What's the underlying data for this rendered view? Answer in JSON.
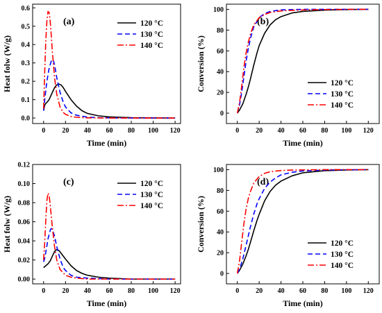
{
  "chart_data": [
    {
      "panel": "(a)",
      "type": "line",
      "xlabel": "Time (min)",
      "ylabel": "Heat folw (W/g)",
      "xlim": [
        -10,
        125
      ],
      "ylim": [
        -0.03,
        0.62
      ],
      "xticks": [
        0,
        20,
        40,
        60,
        80,
        100,
        120
      ],
      "yticks": [
        0.0,
        0.1,
        0.2,
        0.3,
        0.4,
        0.5,
        0.6
      ],
      "ytick_decimals": 1,
      "legend_position": "top-right",
      "series": [
        {
          "name": "120 °C",
          "color": "#000000",
          "dash": "solid",
          "x": [
            0,
            1,
            2,
            3,
            5,
            8,
            10,
            12,
            14,
            16,
            18,
            20,
            25,
            30,
            35,
            40,
            50,
            60,
            80,
            100,
            120
          ],
          "y": [
            0.04,
            0.07,
            0.08,
            0.085,
            0.1,
            0.14,
            0.165,
            0.18,
            0.185,
            0.18,
            0.165,
            0.145,
            0.1,
            0.065,
            0.04,
            0.025,
            0.012,
            0.006,
            0.002,
            0.001,
            0.0
          ]
        },
        {
          "name": "130 °C",
          "color": "#0000ff",
          "dash": "dashed",
          "x": [
            0,
            1,
            2,
            3,
            5,
            7,
            8,
            9,
            10,
            12,
            15,
            18,
            20,
            25,
            30,
            40,
            50,
            60,
            80,
            100,
            120
          ],
          "y": [
            0.04,
            0.1,
            0.15,
            0.2,
            0.27,
            0.31,
            0.32,
            0.31,
            0.29,
            0.22,
            0.14,
            0.085,
            0.06,
            0.028,
            0.015,
            0.005,
            0.002,
            0.001,
            0.0,
            0.0,
            0.0
          ]
        },
        {
          "name": "140 °C",
          "color": "#ff0000",
          "dash": "dashdot",
          "x": [
            0,
            1,
            2,
            3,
            4,
            5,
            6,
            7,
            8,
            10,
            12,
            15,
            18,
            20,
            25,
            30,
            40,
            60,
            80,
            100,
            120
          ],
          "y": [
            0.05,
            0.25,
            0.42,
            0.53,
            0.58,
            0.575,
            0.53,
            0.45,
            0.36,
            0.22,
            0.13,
            0.06,
            0.03,
            0.02,
            0.008,
            0.004,
            0.001,
            0.0,
            0.0,
            0.0,
            0.0
          ]
        }
      ]
    },
    {
      "panel": "(b)",
      "type": "line",
      "xlabel": "Time (min)",
      "ylabel": "Conversion (%)",
      "xlim": [
        -10,
        130
      ],
      "ylim": [
        -10,
        105
      ],
      "xticks": [
        0,
        20,
        40,
        60,
        80,
        100,
        120
      ],
      "yticks": [
        0,
        20,
        40,
        60,
        80,
        100
      ],
      "ytick_decimals": 0,
      "legend_position": "center-right",
      "series": [
        {
          "name": "120 °C",
          "color": "#000000",
          "dash": "solid",
          "x": [
            0,
            2,
            5,
            8,
            10,
            12,
            15,
            18,
            20,
            25,
            30,
            35,
            40,
            50,
            60,
            80,
            100,
            120
          ],
          "y": [
            0,
            3,
            9,
            18,
            25,
            33,
            46,
            58,
            65,
            77,
            85,
            90,
            93,
            96.5,
            98,
            99.3,
            99.8,
            100
          ]
        },
        {
          "name": "130 °C",
          "color": "#0000ff",
          "dash": "dashed",
          "x": [
            0,
            2,
            4,
            6,
            8,
            10,
            12,
            15,
            20,
            25,
            30,
            40,
            50,
            60,
            80,
            100,
            120
          ],
          "y": [
            0,
            8,
            20,
            35,
            50,
            62,
            72,
            83,
            92,
            96,
            98,
            99.5,
            99.8,
            100,
            100,
            100,
            100
          ]
        },
        {
          "name": "140 °C",
          "color": "#ff0000",
          "dash": "dashdot",
          "x": [
            0,
            2,
            4,
            6,
            8,
            10,
            12,
            15,
            20,
            25,
            30,
            40,
            50,
            60,
            80,
            100,
            120
          ],
          "y": [
            0,
            10,
            26,
            44,
            58,
            68,
            76,
            85,
            92,
            95,
            97,
            98.5,
            99,
            99.4,
            99.8,
            100,
            100
          ]
        }
      ]
    },
    {
      "panel": "(c)",
      "type": "line",
      "xlabel": "Time (min)",
      "ylabel": "Heat folw (W/g)",
      "xlim": [
        -10,
        125
      ],
      "ylim": [
        -0.005,
        0.12
      ],
      "xticks": [
        0,
        20,
        40,
        60,
        80,
        100,
        120
      ],
      "yticks": [
        0.0,
        0.02,
        0.04,
        0.06,
        0.08,
        0.1,
        0.12
      ],
      "ytick_decimals": 2,
      "legend_position": "top-right",
      "series": [
        {
          "name": "120 °C",
          "color": "#000000",
          "dash": "solid",
          "x": [
            0,
            2,
            4,
            6,
            8,
            10,
            12,
            14,
            16,
            18,
            20,
            25,
            30,
            35,
            40,
            50,
            60,
            80,
            100,
            120
          ],
          "y": [
            0.012,
            0.014,
            0.016,
            0.019,
            0.024,
            0.029,
            0.031,
            0.03,
            0.027,
            0.024,
            0.021,
            0.014,
            0.009,
            0.006,
            0.004,
            0.002,
            0.001,
            0.0,
            0.0,
            0.0
          ]
        },
        {
          "name": "130 °C",
          "color": "#0000ff",
          "dash": "dashed",
          "x": [
            0,
            1,
            2,
            4,
            6,
            7,
            8,
            10,
            12,
            15,
            18,
            20,
            25,
            30,
            40,
            60,
            80,
            100,
            120
          ],
          "y": [
            0.018,
            0.022,
            0.028,
            0.042,
            0.051,
            0.053,
            0.052,
            0.045,
            0.034,
            0.021,
            0.012,
            0.009,
            0.004,
            0.002,
            0.001,
            0.0,
            0.0,
            0.0,
            0.0
          ]
        },
        {
          "name": "140 °C",
          "color": "#ff0000",
          "dash": "dashdot",
          "x": [
            0,
            1,
            2,
            3,
            4,
            5,
            6,
            8,
            10,
            12,
            15,
            20,
            25,
            30,
            40,
            60,
            80,
            100,
            120
          ],
          "y": [
            0.02,
            0.038,
            0.062,
            0.082,
            0.09,
            0.088,
            0.078,
            0.054,
            0.034,
            0.02,
            0.01,
            0.004,
            0.002,
            0.001,
            0.0,
            0.0,
            0.0,
            0.0,
            0.0
          ]
        }
      ]
    },
    {
      "panel": "(d)",
      "type": "line",
      "xlabel": "Time (min)",
      "ylabel": "Conversion (%)",
      "xlim": [
        -10,
        130
      ],
      "ylim": [
        -10,
        105
      ],
      "xticks": [
        0,
        20,
        40,
        60,
        80,
        100,
        120
      ],
      "yticks": [
        0,
        20,
        40,
        60,
        80,
        100
      ],
      "ytick_decimals": 0,
      "legend_position": "bottom-right",
      "series": [
        {
          "name": "120 °C",
          "color": "#000000",
          "dash": "solid",
          "x": [
            0,
            2,
            5,
            8,
            10,
            12,
            15,
            18,
            20,
            25,
            30,
            35,
            40,
            50,
            60,
            80,
            100,
            120
          ],
          "y": [
            0,
            3,
            9,
            17,
            23,
            30,
            41,
            51,
            57,
            70,
            79,
            85,
            89,
            94,
            97,
            99,
            99.7,
            100
          ]
        },
        {
          "name": "130 °C",
          "color": "#0000ff",
          "dash": "dashed",
          "x": [
            0,
            2,
            5,
            8,
            10,
            12,
            15,
            18,
            20,
            25,
            30,
            35,
            40,
            50,
            60,
            80,
            100,
            120
          ],
          "y": [
            0,
            4,
            14,
            27,
            36,
            45,
            57,
            67,
            72,
            82,
            88,
            92,
            95,
            97.5,
            98.8,
            99.6,
            99.9,
            100
          ]
        },
        {
          "name": "140 °C",
          "color": "#ff0000",
          "dash": "dashdot",
          "x": [
            0,
            2,
            4,
            6,
            8,
            10,
            12,
            15,
            20,
            25,
            30,
            40,
            50,
            60,
            80,
            100,
            120
          ],
          "y": [
            0,
            12,
            30,
            48,
            62,
            72,
            79,
            87,
            93.5,
            96.5,
            98,
            99.2,
            99.6,
            99.8,
            100,
            100,
            100
          ]
        }
      ]
    }
  ]
}
